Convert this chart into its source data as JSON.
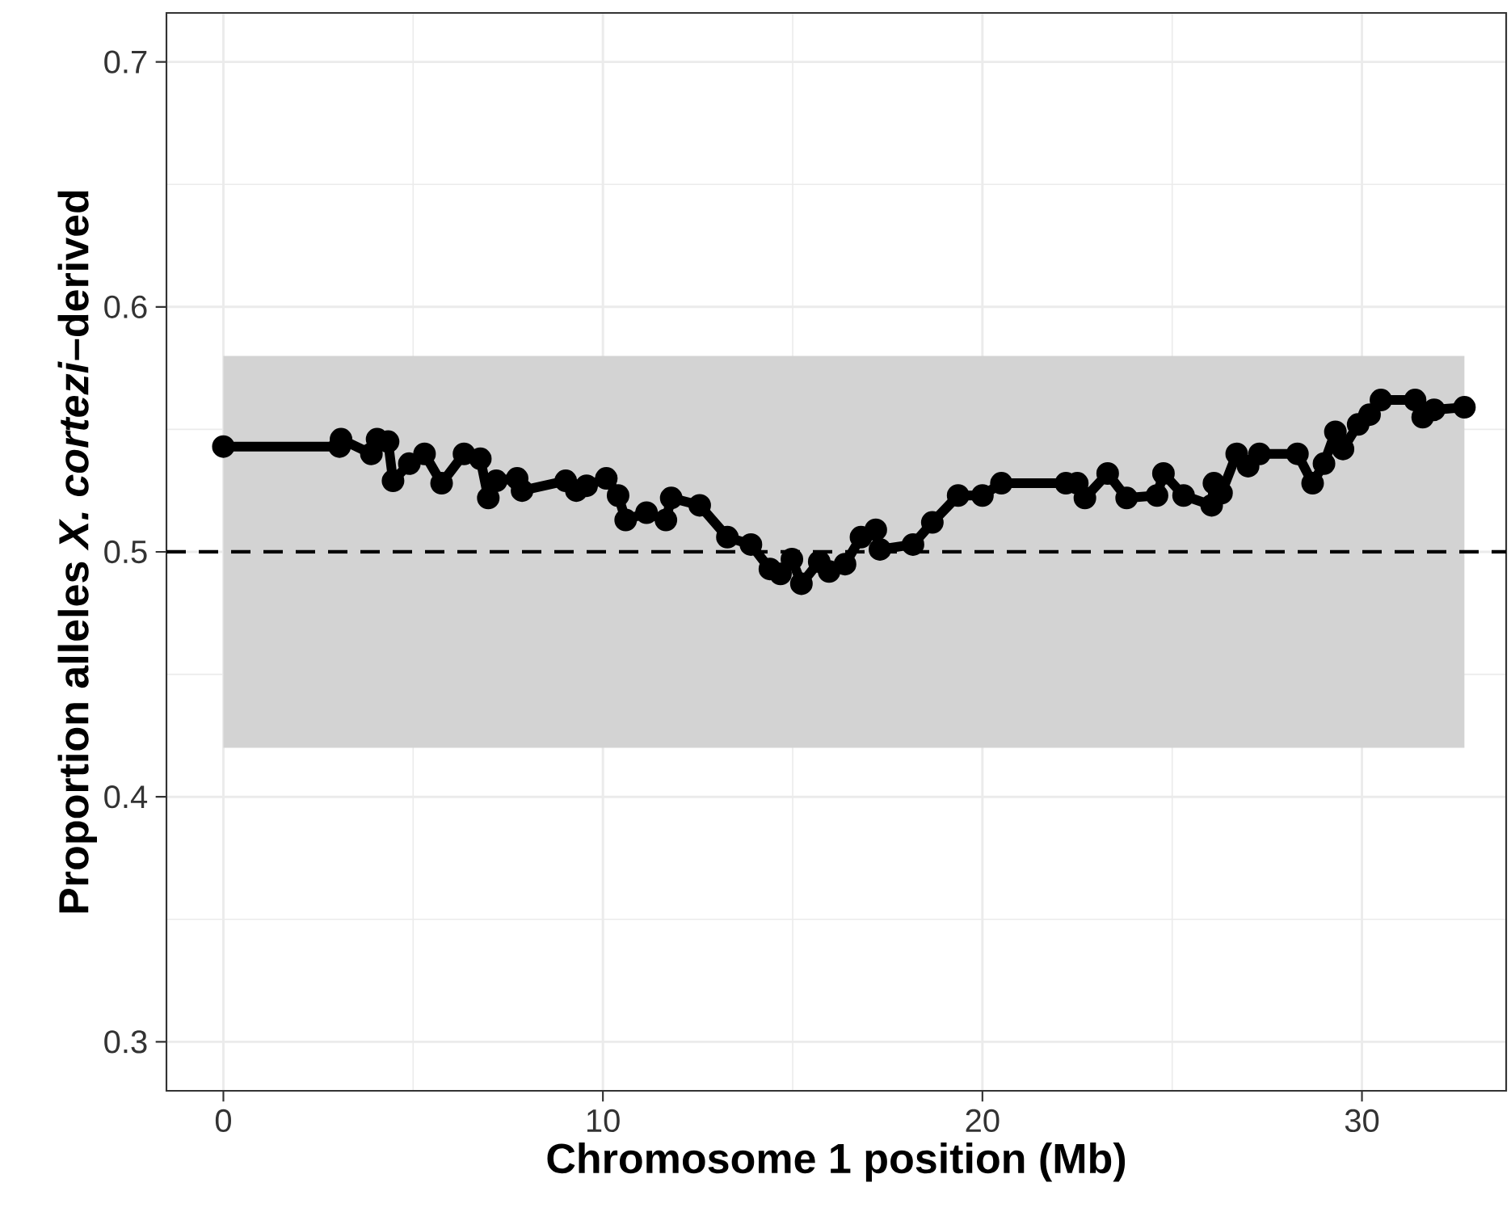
{
  "chart_data": {
    "type": "line",
    "xlabel": "Chromosome 1 position (Mb)",
    "ylabel": "Proportion alleles *X. cortezi*–derived",
    "xlim": [
      -1.5,
      33.8
    ],
    "ylim": [
      0.28,
      0.72
    ],
    "xticks": [
      0,
      10,
      20,
      30
    ],
    "yticks": [
      0.3,
      0.4,
      0.5,
      0.6,
      0.7
    ],
    "grid": true,
    "marker": "circle",
    "bands": [
      {
        "axis": "y",
        "from": 0.42,
        "to": 0.58,
        "color": "#d3d3d3"
      }
    ],
    "ref_lines": [
      {
        "axis": "y",
        "value": 0.5,
        "line_style": "dashed",
        "color": "#000000"
      }
    ],
    "series": [
      {
        "color": "#000000",
        "x": [
          0,
          3.06,
          3.1,
          3.9,
          4.05,
          4.34,
          4.47,
          4.9,
          5.3,
          5.75,
          6.34,
          6.77,
          6.98,
          7.19,
          7.74,
          7.87,
          9.02,
          9.3,
          9.57,
          10.09,
          10.4,
          10.6,
          11.15,
          11.66,
          11.8,
          12.55,
          13.28,
          13.9,
          14.4,
          14.68,
          14.98,
          15.23,
          15.7,
          15.96,
          16.38,
          16.8,
          17.19,
          17.3,
          18.17,
          18.68,
          19.36,
          20.0,
          20.5,
          22.2,
          22.5,
          22.7,
          23.3,
          23.8,
          24.6,
          24.77,
          25.3,
          26.04,
          26.1,
          26.3,
          26.7,
          27.0,
          27.3,
          28.3,
          28.7,
          29.0,
          29.3,
          29.5,
          29.9,
          30.2,
          30.5,
          31.4,
          31.6,
          31.9,
          32.7
        ],
        "values": [
          0.543,
          0.543,
          0.546,
          0.54,
          0.546,
          0.545,
          0.529,
          0.536,
          0.54,
          0.528,
          0.54,
          0.538,
          0.522,
          0.529,
          0.53,
          0.525,
          0.529,
          0.525,
          0.527,
          0.53,
          0.523,
          0.513,
          0.516,
          0.513,
          0.522,
          0.519,
          0.506,
          0.503,
          0.493,
          0.491,
          0.497,
          0.487,
          0.496,
          0.492,
          0.495,
          0.506,
          0.509,
          0.501,
          0.503,
          0.512,
          0.523,
          0.523,
          0.528,
          0.528,
          0.528,
          0.522,
          0.532,
          0.522,
          0.523,
          0.532,
          0.523,
          0.519,
          0.528,
          0.524,
          0.54,
          0.535,
          0.54,
          0.54,
          0.528,
          0.536,
          0.549,
          0.542,
          0.552,
          0.556,
          0.562,
          0.562,
          0.555,
          0.558,
          0.559
        ]
      }
    ]
  }
}
